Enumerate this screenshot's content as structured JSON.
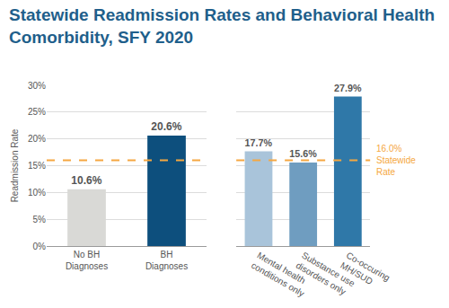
{
  "chart_data": [
    {
      "type": "bar",
      "title": [
        "Statewide Readmission Rates and Behavioral Health",
        "Comorbidity, SFY 2020"
      ],
      "y_label": "Readmission Rate",
      "categories": [
        "No BH Diagnoses",
        "BH Diagnoses"
      ],
      "values": [
        10.6,
        20.6
      ],
      "value_labels": [
        "10.6%",
        "20.6%"
      ],
      "colors": [
        "#d9d9d6",
        "#0d4f7d"
      ],
      "ylim": [
        0,
        30
      ],
      "yticks": [
        {
          "value": 0,
          "label": "0%"
        },
        {
          "value": 5,
          "label": "5%"
        },
        {
          "value": 10,
          "label": "10%"
        },
        {
          "value": 15,
          "label": "15%"
        },
        {
          "value": 20,
          "label": "20%"
        },
        {
          "value": 25,
          "label": "25%"
        },
        {
          "value": 30,
          "label": "30%"
        }
      ],
      "grid": true,
      "data_labels": true,
      "reference_line": {
        "value": 16.0,
        "color": "#f5a741",
        "line_style": "dashed"
      }
    },
    {
      "type": "bar",
      "categories": [
        "Mental health conditions only",
        "Substance use disorders only",
        "Co-occuring MH/SUD"
      ],
      "values": [
        17.7,
        15.6,
        27.9
      ],
      "value_labels": [
        "17.7%",
        "15.6%",
        "27.9%"
      ],
      "colors": [
        "#a9c4da",
        "#6f9dc0",
        "#2f78a8"
      ],
      "ylim": [
        0,
        30
      ],
      "yticks": [
        {
          "value": 0,
          "label": "0%"
        },
        {
          "value": 5,
          "label": "5%"
        },
        {
          "value": 10,
          "label": "10%"
        },
        {
          "value": 15,
          "label": "15%"
        },
        {
          "value": 20,
          "label": "20%"
        },
        {
          "value": 25,
          "label": "25%"
        },
        {
          "value": 30,
          "label": "30%"
        }
      ],
      "grid": true,
      "tick_labels": "x",
      "data_labels": true,
      "reference_line": {
        "value": 16.0,
        "label": [
          "16.0%",
          "Statewide",
          "Rate"
        ],
        "color": "#f5a741",
        "line_style": "dashed"
      }
    }
  ]
}
